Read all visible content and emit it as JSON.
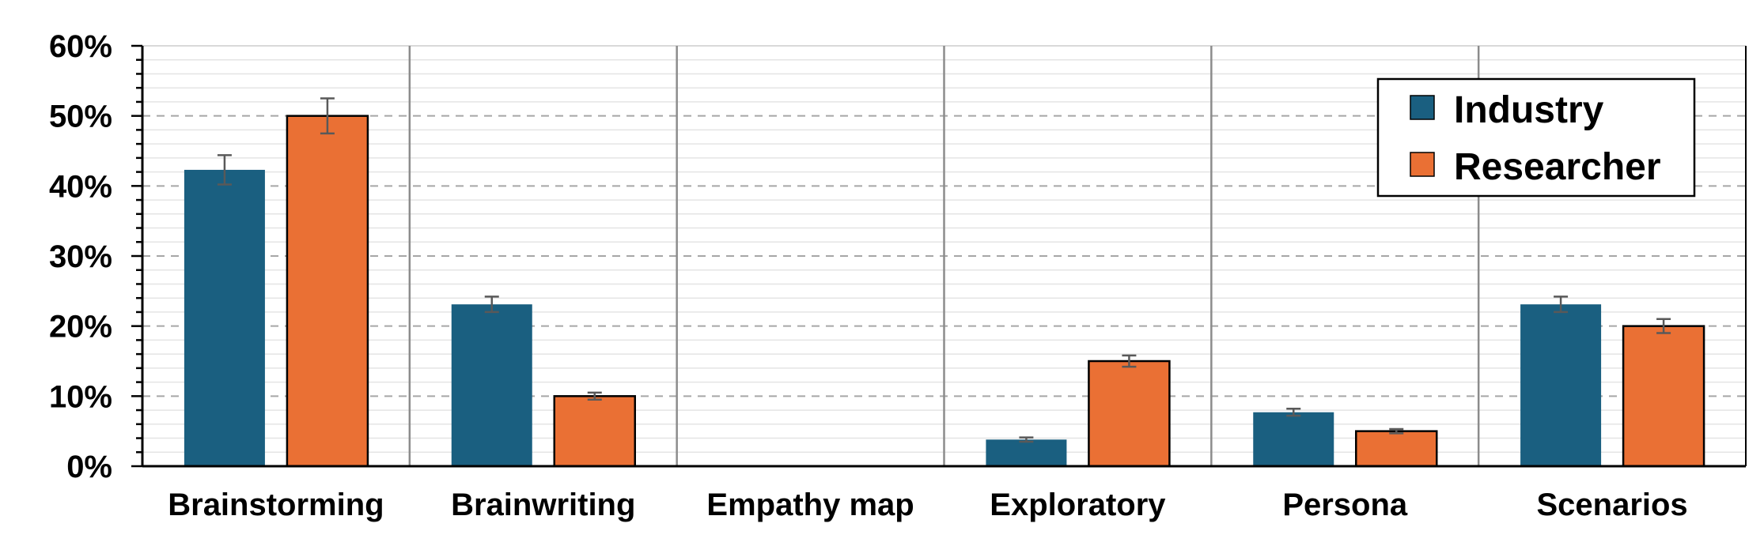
{
  "chart_data": {
    "type": "bar",
    "categories": [
      "Brainstorming",
      "Brainwriting",
      "Empathy map",
      "Exploratory",
      "Persona",
      "Scenarios"
    ],
    "series": [
      {
        "name": "Industry",
        "color": "#1a5f80",
        "values": [
          42.3,
          23.1,
          0,
          3.8,
          7.7,
          23.1
        ],
        "error": [
          2.1,
          1.1,
          0,
          0.3,
          0.5,
          1.1
        ]
      },
      {
        "name": "Researcher",
        "color": "#ea7034",
        "values": [
          50.0,
          10.0,
          0,
          15.0,
          5.0,
          20.0
        ],
        "error": [
          2.5,
          0.5,
          0,
          0.8,
          0.3,
          1.0
        ]
      }
    ],
    "ylim": [
      0,
      60
    ],
    "yticks": [
      "0%",
      "10%",
      "20%",
      "30%",
      "40%",
      "50%",
      "60%"
    ],
    "ytick_values": [
      0,
      10,
      20,
      30,
      40,
      50,
      60
    ],
    "xlabel": "",
    "ylabel": "",
    "grid": true,
    "legend_position": "top-right"
  }
}
